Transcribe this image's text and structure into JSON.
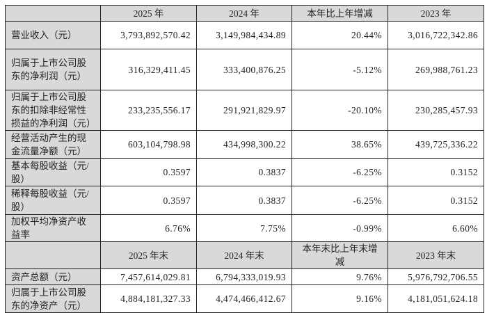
{
  "header1": [
    "",
    "2025 年",
    "2024 年",
    "本年比上年增减",
    "2023 年"
  ],
  "rows1": [
    {
      "label": "营业收入（元）",
      "v2025": "3,793,892,570.42",
      "v2024": "3,149,984,434.89",
      "change": "20.44%",
      "v2023": "3,016,722,342.86"
    },
    {
      "label": "归属于上市公司股东的净利润（元）",
      "v2025": "316,329,411.45",
      "v2024": "333,400,876.25",
      "change": "-5.12%",
      "v2023": "269,988,761.23"
    },
    {
      "label": "归属于上市公司股东的扣除非经常性损益的净利润（元）",
      "v2025": "233,235,556.17",
      "v2024": "291,921,829.97",
      "change": "-20.10%",
      "v2023": "230,285,457.93"
    },
    {
      "label": "经营活动产生的现金流量净额（元）",
      "v2025": "603,104,798.98",
      "v2024": "434,998,300.22",
      "change": "38.65%",
      "v2023": "439,725,336.22"
    },
    {
      "label": "基本每股收益（元/股）",
      "v2025": "0.3597",
      "v2024": "0.3837",
      "change": "-6.25%",
      "v2023": "0.3152"
    },
    {
      "label": "稀释每股收益（元/股）",
      "v2025": "0.3597",
      "v2024": "0.3837",
      "change": "-6.25%",
      "v2023": "0.3152"
    },
    {
      "label": "加权平均净资产收益率",
      "v2025": "6.76%",
      "v2024": "7.75%",
      "change": "-0.99%",
      "v2023": "6.60%"
    }
  ],
  "header2": [
    "",
    "2025 年末",
    "2024 年末",
    "本年末比上年末增减",
    "2023 年末"
  ],
  "rows2": [
    {
      "label": "资产总额（元）",
      "v2025": "7,457,614,029.81",
      "v2024": "6,794,333,019.93",
      "change": "9.76%",
      "v2023": "5,976,792,706.55"
    },
    {
      "label": "归属于上市公司股东的净资产（元）",
      "v2025": "4,884,181,327.33",
      "v2024": "4,474,466,412.67",
      "change": "9.16%",
      "v2023": "4,181,051,624.18"
    }
  ]
}
